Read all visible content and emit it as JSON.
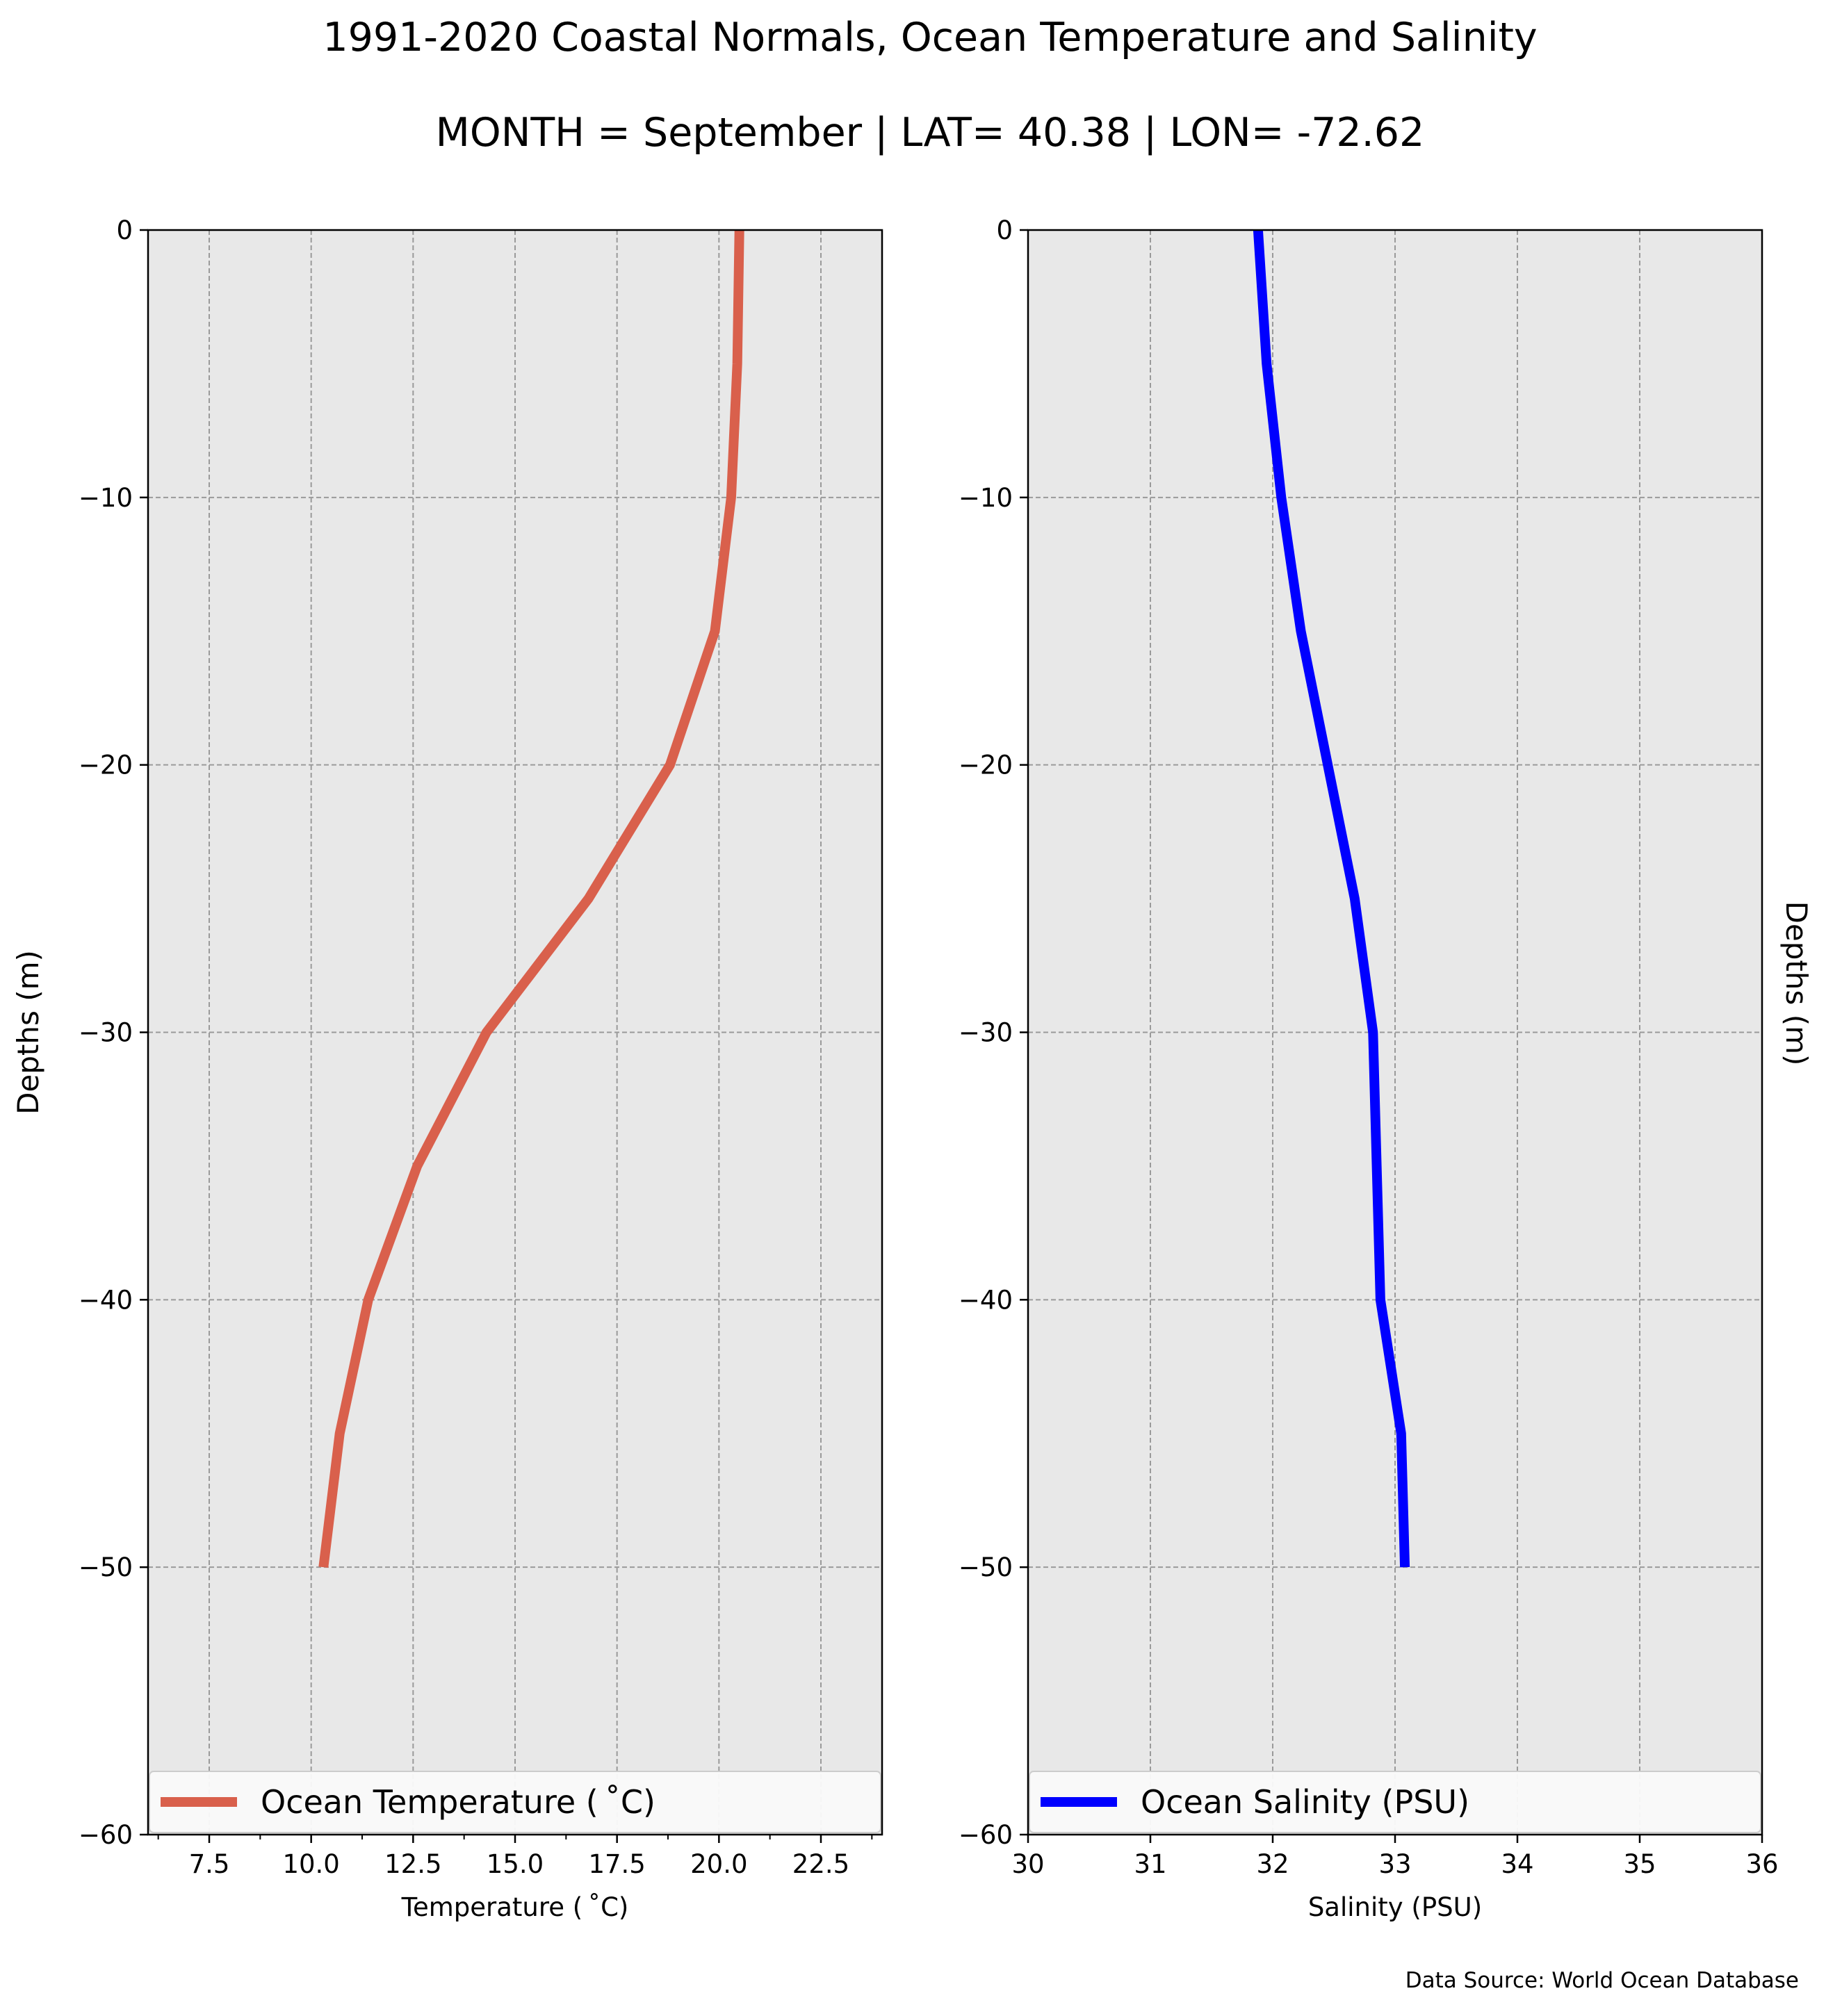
{
  "figure": {
    "title_line1": "1991-2020 Coastal Normals, Ocean Temperature and Salinity",
    "title_line2": "MONTH = September | LAT= 40.38 | LON= -72.62",
    "source": "Data Source: World Ocean Database"
  },
  "chart_data": [
    {
      "type": "line",
      "xlabel": "Temperature ($^\\circ$C)",
      "xlabel_text": "Temperature ( ˚C)",
      "ylabel": "Depths (m)",
      "xlim": [
        6.0,
        24.0
      ],
      "ylim": [
        -60,
        0
      ],
      "xticks": [
        7.5,
        10.0,
        12.5,
        15.0,
        17.5,
        20.0,
        22.5
      ],
      "xtick_labels": [
        "7.5",
        "10.0",
        "12.5",
        "15.0",
        "17.5",
        "20.0",
        "22.5"
      ],
      "yticks": [
        0,
        -10,
        -20,
        -30,
        -40,
        -50,
        -60
      ],
      "ytick_labels": [
        "0",
        "−10",
        "−20",
        "−30",
        "−40",
        "−50",
        "−60"
      ],
      "grid": true,
      "legend_position": "bottom",
      "series": [
        {
          "name": "Ocean Temperature ( ˚C)",
          "color": "#d9604c",
          "x": [
            20.5,
            20.45,
            20.3,
            19.9,
            18.8,
            16.8,
            14.3,
            12.6,
            11.4,
            10.7,
            10.3
          ],
          "y": [
            0,
            -5,
            -10,
            -15,
            -20,
            -25,
            -30,
            -35,
            -40,
            -45,
            -50
          ]
        }
      ]
    },
    {
      "type": "line",
      "xlabel": "Salinity (PSU)",
      "ylabel": "Depths (m)",
      "xlim": [
        30,
        36
      ],
      "ylim": [
        -60,
        0
      ],
      "xticks": [
        30,
        31,
        32,
        33,
        34,
        35,
        36
      ],
      "xtick_labels": [
        "30",
        "31",
        "32",
        "33",
        "34",
        "35",
        "36"
      ],
      "yticks": [
        0,
        -10,
        -20,
        -30,
        -40,
        -50,
        -60
      ],
      "ytick_labels": [
        "0",
        "−10",
        "−20",
        "−30",
        "−40",
        "−50",
        "−60"
      ],
      "grid": true,
      "legend_position": "bottom",
      "series": [
        {
          "name": "Ocean Salinity (PSU)",
          "color": "#0000ff",
          "x": [
            31.88,
            31.95,
            32.07,
            32.23,
            32.45,
            32.67,
            32.82,
            32.85,
            32.88,
            33.05,
            33.08
          ],
          "y": [
            0,
            -5,
            -10,
            -15,
            -20,
            -25,
            -30,
            -35,
            -40,
            -45,
            -50
          ]
        }
      ]
    }
  ]
}
